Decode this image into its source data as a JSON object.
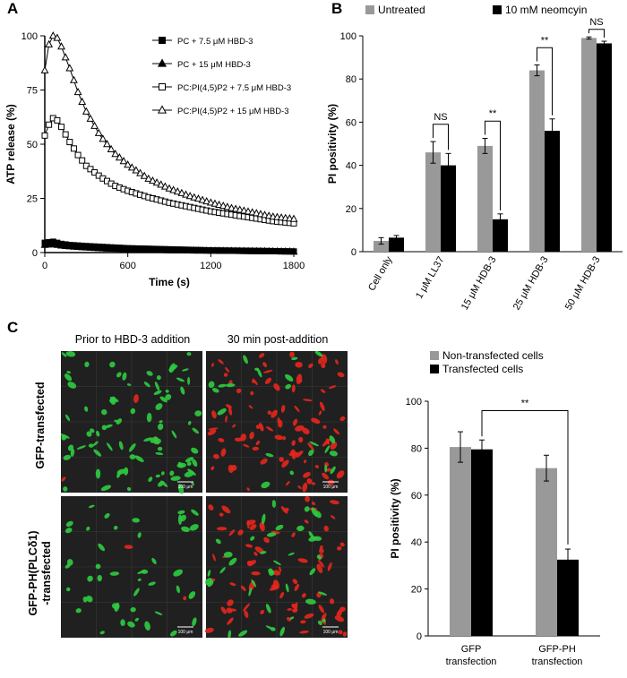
{
  "panels": {
    "A": {
      "letter": "A"
    },
    "B": {
      "letter": "B"
    },
    "C": {
      "letter": "C"
    }
  },
  "chart_data": [
    {
      "id": "A",
      "type": "line",
      "xlabel": "Time (s)",
      "ylabel": "ATP release (%)",
      "xlim": [
        0,
        1800
      ],
      "ylim": [
        0,
        100
      ],
      "xticks": [
        0,
        600,
        1200,
        1800
      ],
      "yticks": [
        0,
        25,
        50,
        75,
        100
      ],
      "legend_position": "top-right",
      "series": [
        {
          "name": "PC + 7.5 μM HBD-3",
          "marker": "filled-square",
          "x": [
            0,
            60,
            120,
            180,
            300,
            450,
            600,
            900,
            1200,
            1500,
            1800
          ],
          "y": [
            4.5,
            5,
            4,
            3.5,
            3,
            2.5,
            2,
            1.5,
            1,
            0.8,
            0.5
          ]
        },
        {
          "name": "PC + 15 μM HBD-3",
          "marker": "filled-triangle",
          "x": [
            0,
            60,
            120,
            180,
            300,
            450,
            600,
            900,
            1200,
            1500,
            1800
          ],
          "y": [
            3.5,
            3.8,
            3.2,
            2.8,
            2.3,
            1.8,
            1.5,
            1,
            0.8,
            0.6,
            0.4
          ]
        },
        {
          "name": "PC:PI(4,5)P2 + 7.5 μM HBD-3",
          "marker": "open-square",
          "x": [
            0,
            30,
            60,
            90,
            120,
            180,
            240,
            300,
            400,
            500,
            600,
            750,
            900,
            1050,
            1200,
            1350,
            1500,
            1650,
            1800
          ],
          "y": [
            54,
            59,
            62,
            61,
            58,
            51,
            45,
            40,
            35,
            31,
            28.5,
            25.5,
            23,
            21,
            19,
            17.5,
            16,
            14.5,
            13.5
          ]
        },
        {
          "name": "PC:PI(4,5)P2 + 15 μM HBD-3",
          "marker": "open-triangle",
          "x": [
            0,
            30,
            60,
            90,
            120,
            180,
            240,
            300,
            400,
            500,
            600,
            750,
            900,
            1050,
            1200,
            1350,
            1500,
            1650,
            1800
          ],
          "y": [
            84,
            96,
            100,
            99,
            95,
            85,
            74,
            65,
            54,
            46,
            40.5,
            34,
            29.5,
            26,
            23,
            20.5,
            18.5,
            16.5,
            15.5
          ]
        }
      ]
    },
    {
      "id": "B",
      "type": "bar",
      "ylabel": "PI positivity (%)",
      "ylim": [
        0,
        100
      ],
      "yticks": [
        0,
        20,
        40,
        60,
        80,
        100
      ],
      "legend_position": "top",
      "categories": [
        "Cell only",
        "1 μM LL37",
        "15 μM HDB-3",
        "25 μM HDB-3",
        "50 μM HDB-3"
      ],
      "series": [
        {
          "name": "Untreated",
          "color": "#999999",
          "values": [
            5,
            46,
            49,
            84,
            99
          ],
          "errors": [
            1.5,
            5,
            3.5,
            2.5,
            0.5
          ]
        },
        {
          "name": "10 mM neomcyin",
          "color": "#000000",
          "values": [
            6.5,
            40,
            15,
            56,
            96.5
          ],
          "errors": [
            1,
            5.5,
            2.5,
            5.5,
            1
          ]
        }
      ],
      "annotations": [
        {
          "group": 1,
          "text": "NS"
        },
        {
          "group": 2,
          "text": "**"
        },
        {
          "group": 3,
          "text": "**"
        },
        {
          "group": 4,
          "text": "NS"
        }
      ]
    },
    {
      "id": "C",
      "type": "bar",
      "ylabel": "PI positivity (%)",
      "ylim": [
        0,
        100
      ],
      "yticks": [
        0,
        20,
        40,
        60,
        80,
        100
      ],
      "legend_position": "top",
      "categories": [
        "GFP\ntransfection",
        "GFP-PH\ntransfection"
      ],
      "series": [
        {
          "name": "Non-transfected cells",
          "color": "#999999",
          "values": [
            80.5,
            71.5
          ],
          "errors": [
            6.5,
            5.5
          ]
        },
        {
          "name": "Transfected cells",
          "color": "#000000",
          "values": [
            79.5,
            32.5
          ],
          "errors": [
            4,
            4.5
          ]
        }
      ],
      "annotations": [
        {
          "text": "**"
        }
      ]
    }
  ],
  "micrographs": {
    "col_titles": [
      "Prior to HBD-3 addition",
      "30 min post-addition"
    ],
    "row_labels": [
      "GFP-transfected",
      "GFP-PH(PLCδ1)\n-transfected"
    ],
    "scale_bar": "100 μm",
    "colors": {
      "gfp": "#2ecc40",
      "pi": "#e8261c",
      "bg": "#202020"
    }
  }
}
